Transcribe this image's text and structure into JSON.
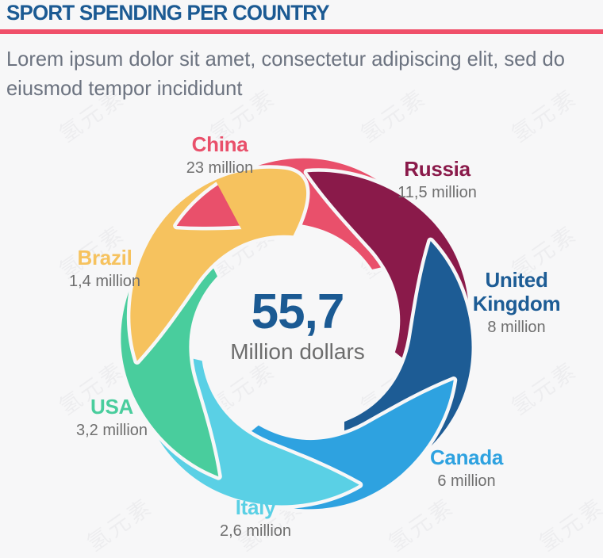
{
  "page": {
    "background": "#f7f7f8"
  },
  "header": {
    "title": "SPORT SPENDING PER COUNTRY",
    "title_color": "#1b5a93",
    "rule_color": "#f0506a"
  },
  "intro": {
    "text": "Lorem ipsum dolor sit amet, consectetur adipiscing elit, sed do eiusmod tempor incididunt"
  },
  "watermark": {
    "text": "氢元素"
  },
  "chart_data": {
    "type": "pie",
    "title": "Sport spending per country",
    "total_millions": 55.7,
    "center_total": {
      "value": "55,7",
      "label": "Million dollars"
    },
    "legend_position": "around",
    "series": [
      {
        "country": "China",
        "label": "23 million",
        "value_millions": 23,
        "color": "#e9506b"
      },
      {
        "country": "Russia",
        "label": "11,5 million",
        "value_millions": 11.5,
        "color": "#8a1a4a"
      },
      {
        "country": "United Kingdom",
        "label": "8 million",
        "value_millions": 8,
        "color": "#1d5c95"
      },
      {
        "country": "Canada",
        "label": "6 million",
        "value_millions": 6,
        "color": "#2ea2e0"
      },
      {
        "country": "Italy",
        "label": "2,6 million",
        "value_millions": 2.6,
        "color": "#5ad0e5"
      },
      {
        "country": "USA",
        "label": "3,2 million",
        "value_millions": 3.2,
        "color": "#49cd9d"
      },
      {
        "country": "Brazil",
        "label": "1,4 million",
        "value_millions": 1.4,
        "color": "#f6c25e"
      }
    ]
  }
}
